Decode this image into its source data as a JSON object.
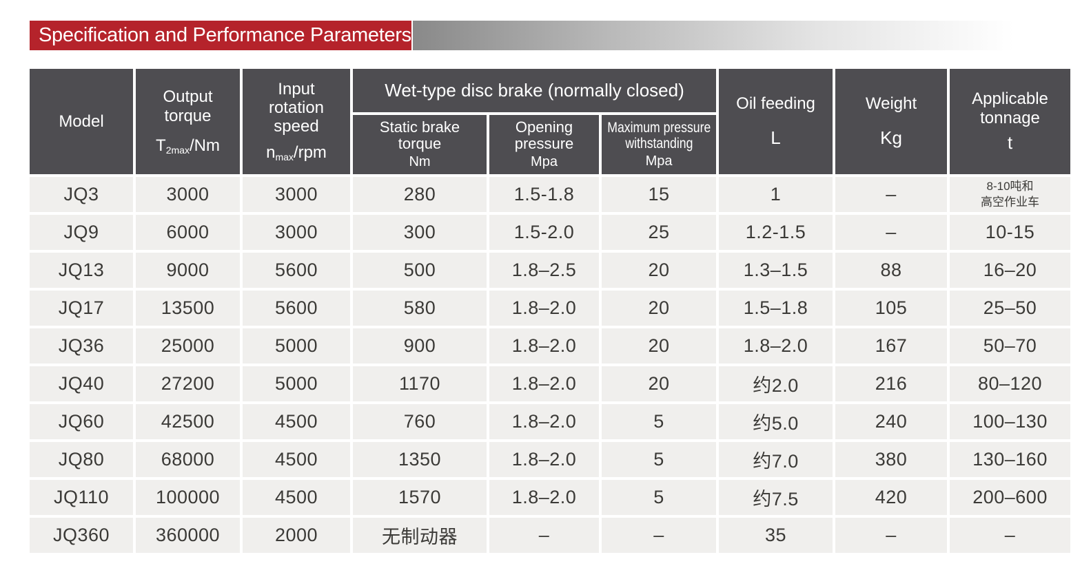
{
  "banner": {
    "title": "Specification and Performance Parameters"
  },
  "colors": {
    "banner_red": "#b5232b",
    "header_gray": "#4e4d51",
    "row_gray": "#f0efed",
    "cell_text": "#3b3a37",
    "gradient_start": "#898989",
    "gradient_end": "#ffffff"
  },
  "header": {
    "model": {
      "label": "Model"
    },
    "output_torque": {
      "line1": "Output",
      "line2": "torque",
      "unit_main": "T",
      "unit_sub": "2max",
      "unit_rest": "/Nm"
    },
    "input_speed": {
      "line1": "Input",
      "line2": "rotation",
      "line3": "speed",
      "unit_main": "n",
      "unit_sub": "max",
      "unit_rest": "/rpm"
    },
    "brake_group": {
      "label": "Wet-type disc brake (normally closed)"
    },
    "static_brake": {
      "line1": "Static brake",
      "line2": "torque",
      "unit": "Nm"
    },
    "opening_pressure": {
      "line1": "Opening",
      "line2": "pressure",
      "unit": "Mpa"
    },
    "max_pressure": {
      "line1": "Maximum pressure",
      "line2": "withstanding",
      "unit": "Mpa"
    },
    "oil_feeding": {
      "label": "Oil feeding",
      "unit": "L"
    },
    "weight": {
      "label": "Weight",
      "unit": "Kg"
    },
    "tonnage": {
      "line1": "Applicable",
      "line2": "tonnage",
      "unit": "t"
    }
  },
  "rows": [
    [
      "JQ3",
      "3000",
      "3000",
      "280",
      "1.5-1.8",
      "15",
      "1",
      "–",
      "8-10吨和\n高空作业车"
    ],
    [
      "JQ9",
      "6000",
      "3000",
      "300",
      "1.5-2.0",
      "25",
      "1.2-1.5",
      "–",
      "10-15"
    ],
    [
      "JQ13",
      "9000",
      "5600",
      "500",
      "1.8–2.5",
      "20",
      "1.3–1.5",
      "88",
      "16–20"
    ],
    [
      "JQ17",
      "13500",
      "5600",
      "580",
      "1.8–2.0",
      "20",
      "1.5–1.8",
      "105",
      "25–50"
    ],
    [
      "JQ36",
      "25000",
      "5000",
      "900",
      "1.8–2.0",
      "20",
      "1.8–2.0",
      "167",
      "50–70"
    ],
    [
      "JQ40",
      "27200",
      "5000",
      "1170",
      "1.8–2.0",
      "20",
      "约2.0",
      "216",
      "80–120"
    ],
    [
      "JQ60",
      "42500",
      "4500",
      "760",
      "1.8–2.0",
      "5",
      "约5.0",
      "240",
      "100–130"
    ],
    [
      "JQ80",
      "68000",
      "4500",
      "1350",
      "1.8–2.0",
      "5",
      "约7.0",
      "380",
      "130–160"
    ],
    [
      "JQ110",
      "100000",
      "4500",
      "1570",
      "1.8–2.0",
      "5",
      "约7.5",
      "420",
      "200–600"
    ],
    [
      "JQ360",
      "360000",
      "2000",
      "无制动器",
      "–",
      "–",
      "35",
      "–",
      "–"
    ]
  ]
}
